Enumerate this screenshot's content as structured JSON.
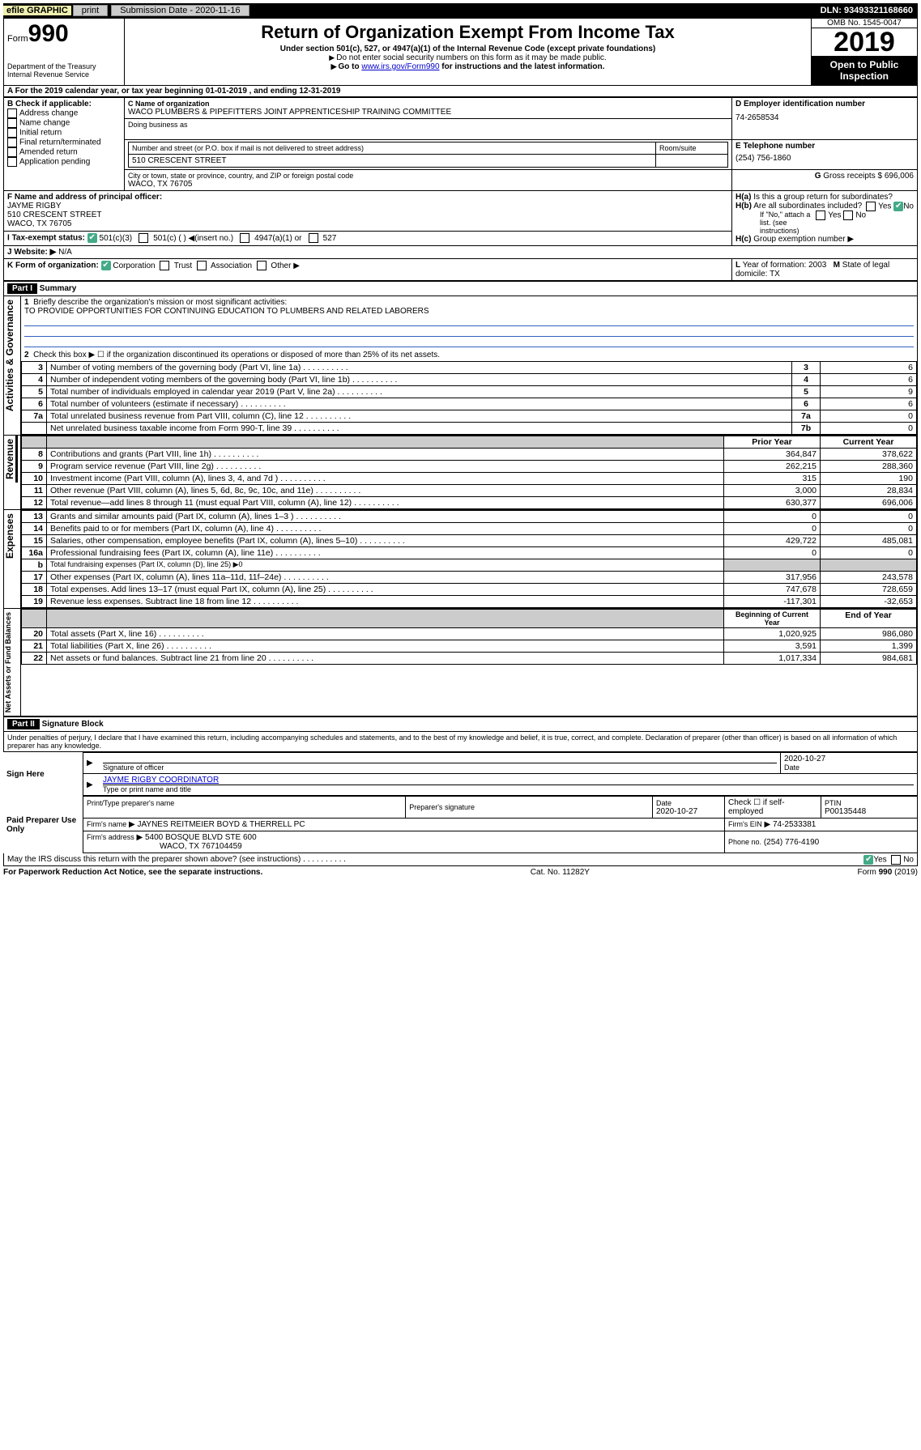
{
  "topbar": {
    "efile": "efile GRAPHIC",
    "print": "print",
    "submission_label": "Submission Date - 2020-11-16",
    "dln": "DLN: 93493321168660"
  },
  "header": {
    "form_label": "Form",
    "form_num": "990",
    "dept": "Department of the Treasury\nInternal Revenue Service",
    "title": "Return of Organization Exempt From Income Tax",
    "sub1": "Under section 501(c), 527, or 4947(a)(1) of the Internal Revenue Code (except private foundations)",
    "sub2": "Do not enter social security numbers on this form as it may be made public.",
    "sub3_pre": "Go to ",
    "sub3_link": "www.irs.gov/Form990",
    "sub3_post": " for instructions and the latest information.",
    "omb": "OMB No. 1545-0047",
    "year": "2019",
    "open": "Open to Public Inspection"
  },
  "A": {
    "line": "For the 2019 calendar year, or tax year beginning 01-01-2019   , and ending 12-31-2019"
  },
  "B": {
    "label": "Check if applicable:",
    "opts": [
      "Address change",
      "Name change",
      "Initial return",
      "Final return/terminated",
      "Amended return",
      "Application pending"
    ]
  },
  "C": {
    "name_label": "Name of organization",
    "name": "WACO PLUMBERS & PIPEFITTERS JOINT APPRENTICESHIP TRAINING COMMITTEE",
    "dba_label": "Doing business as",
    "addr_label": "Number and street (or P.O. box if mail is not delivered to street address)",
    "room_label": "Room/suite",
    "addr": "510 CRESCENT STREET",
    "city_label": "City or town, state or province, country, and ZIP or foreign postal code",
    "city": "WACO, TX  76705"
  },
  "D": {
    "label": "Employer identification number",
    "val": "74-2658534"
  },
  "E": {
    "label": "Telephone number",
    "val": "(254) 756-1860"
  },
  "G": {
    "label": "Gross receipts $",
    "val": "696,006"
  },
  "F": {
    "label": "Name and address of principal officer:",
    "name": "JAYME RIGBY",
    "addr1": "510 CRESCENT STREET",
    "addr2": "WACO, TX  76705"
  },
  "H": {
    "a": "Is this a group return for subordinates?",
    "b": "Are all subordinates included?",
    "b_note": "If \"No,\" attach a list. (see instructions)",
    "c": "Group exemption number"
  },
  "I": {
    "label": "Tax-exempt status:",
    "opts": [
      "501(c)(3)",
      "501(c) (   ) ◀(insert no.)",
      "4947(a)(1) or",
      "527"
    ]
  },
  "J": {
    "label": "Website:",
    "val": "N/A"
  },
  "K": {
    "label": "Form of organization:",
    "opts": [
      "Corporation",
      "Trust",
      "Association",
      "Other"
    ]
  },
  "L": {
    "label": "Year of formation:",
    "val": "2003"
  },
  "M": {
    "label": "State of legal domicile:",
    "val": "TX"
  },
  "partI": {
    "hdr": "Part I",
    "title": "Summary",
    "q1_label": "Briefly describe the organization's mission or most significant activities:",
    "q1": "TO PROVIDE OPPORTUNITIES FOR CONTINUING EDUCATION TO PLUMBERS AND RELATED LABORERS",
    "q2": "Check this box ▶ ☐  if the organization discontinued its operations or disposed of more than 25% of its net assets.",
    "vlabels": {
      "gov": "Activities & Governance",
      "rev": "Revenue",
      "exp": "Expenses",
      "net": "Net Assets or Fund Balances"
    },
    "lines_single": [
      {
        "n": "3",
        "d": "Number of voting members of the governing body (Part VI, line 1a)",
        "box": "3",
        "v": "6"
      },
      {
        "n": "4",
        "d": "Number of independent voting members of the governing body (Part VI, line 1b)",
        "box": "4",
        "v": "6"
      },
      {
        "n": "5",
        "d": "Total number of individuals employed in calendar year 2019 (Part V, line 2a)",
        "box": "5",
        "v": "9"
      },
      {
        "n": "6",
        "d": "Total number of volunteers (estimate if necessary)",
        "box": "6",
        "v": "6"
      },
      {
        "n": "7a",
        "d": "Total unrelated business revenue from Part VIII, column (C), line 12",
        "box": "7a",
        "v": "0"
      },
      {
        "n": "",
        "d": "Net unrelated business taxable income from Form 990-T, line 39",
        "box": "7b",
        "v": "0"
      }
    ],
    "col_hdrs": {
      "prior": "Prior Year",
      "current": "Current Year"
    },
    "revenue": [
      {
        "n": "8",
        "d": "Contributions and grants (Part VIII, line 1h)",
        "p": "364,847",
        "c": "378,622"
      },
      {
        "n": "9",
        "d": "Program service revenue (Part VIII, line 2g)",
        "p": "262,215",
        "c": "288,360"
      },
      {
        "n": "10",
        "d": "Investment income (Part VIII, column (A), lines 3, 4, and 7d )",
        "p": "315",
        "c": "190"
      },
      {
        "n": "11",
        "d": "Other revenue (Part VIII, column (A), lines 5, 6d, 8c, 9c, 10c, and 11e)",
        "p": "3,000",
        "c": "28,834"
      },
      {
        "n": "12",
        "d": "Total revenue—add lines 8 through 11 (must equal Part VIII, column (A), line 12)",
        "p": "630,377",
        "c": "696,006"
      }
    ],
    "expenses": [
      {
        "n": "13",
        "d": "Grants and similar amounts paid (Part IX, column (A), lines 1–3 )",
        "p": "0",
        "c": "0"
      },
      {
        "n": "14",
        "d": "Benefits paid to or for members (Part IX, column (A), line 4)",
        "p": "0",
        "c": "0"
      },
      {
        "n": "15",
        "d": "Salaries, other compensation, employee benefits (Part IX, column (A), lines 5–10)",
        "p": "429,722",
        "c": "485,081"
      },
      {
        "n": "16a",
        "d": "Professional fundraising fees (Part IX, column (A), line 11e)",
        "p": "0",
        "c": "0"
      }
    ],
    "line_b": "Total fundraising expenses (Part IX, column (D), line 25) ▶0",
    "expenses2": [
      {
        "n": "17",
        "d": "Other expenses (Part IX, column (A), lines 11a–11d, 11f–24e)",
        "p": "317,956",
        "c": "243,578"
      },
      {
        "n": "18",
        "d": "Total expenses. Add lines 13–17 (must equal Part IX, column (A), line 25)",
        "p": "747,678",
        "c": "728,659"
      },
      {
        "n": "19",
        "d": "Revenue less expenses. Subtract line 18 from line 12",
        "p": "-117,301",
        "c": "-32,653"
      }
    ],
    "net_hdrs": {
      "begin": "Beginning of Current Year",
      "end": "End of Year"
    },
    "net": [
      {
        "n": "20",
        "d": "Total assets (Part X, line 16)",
        "p": "1,020,925",
        "c": "986,080"
      },
      {
        "n": "21",
        "d": "Total liabilities (Part X, line 26)",
        "p": "3,591",
        "c": "1,399"
      },
      {
        "n": "22",
        "d": "Net assets or fund balances. Subtract line 21 from line 20",
        "p": "1,017,334",
        "c": "984,681"
      }
    ]
  },
  "partII": {
    "hdr": "Part II",
    "title": "Signature Block",
    "decl": "Under penalties of perjury, I declare that I have examined this return, including accompanying schedules and statements, and to the best of my knowledge and belief, it is true, correct, and complete. Declaration of preparer (other than officer) is based on all information of which preparer has any knowledge.",
    "sign_here": "Sign Here",
    "sig_officer": "Signature of officer",
    "date": "2020-10-27",
    "officer_name": "JAYME RIGBY COORDINATOR",
    "type_name": "Type or print name and title",
    "paid": "Paid Preparer Use Only",
    "prep_name_label": "Print/Type preparer's name",
    "prep_sig_label": "Preparer's signature",
    "date_label": "Date",
    "date2": "2020-10-27",
    "check_self": "Check ☐ if self-employed",
    "ptin_label": "PTIN",
    "ptin": "P00135448",
    "firm_name_label": "Firm's name",
    "firm_name": "JAYNES REITMEIER BOYD & THERRELL PC",
    "firm_ein_label": "Firm's EIN",
    "firm_ein": "74-2533381",
    "firm_addr_label": "Firm's address",
    "firm_addr": "5400 BOSQUE BLVD STE 600",
    "firm_city": "WACO, TX  767104459",
    "phone_label": "Phone no.",
    "phone": "(254) 776-4190",
    "discuss": "May the IRS discuss this return with the preparer shown above? (see instructions)",
    "yes": "Yes",
    "no": "No"
  },
  "footer": {
    "left": "For Paperwork Reduction Act Notice, see the separate instructions.",
    "mid": "Cat. No. 11282Y",
    "right": "Form 990 (2019)"
  }
}
